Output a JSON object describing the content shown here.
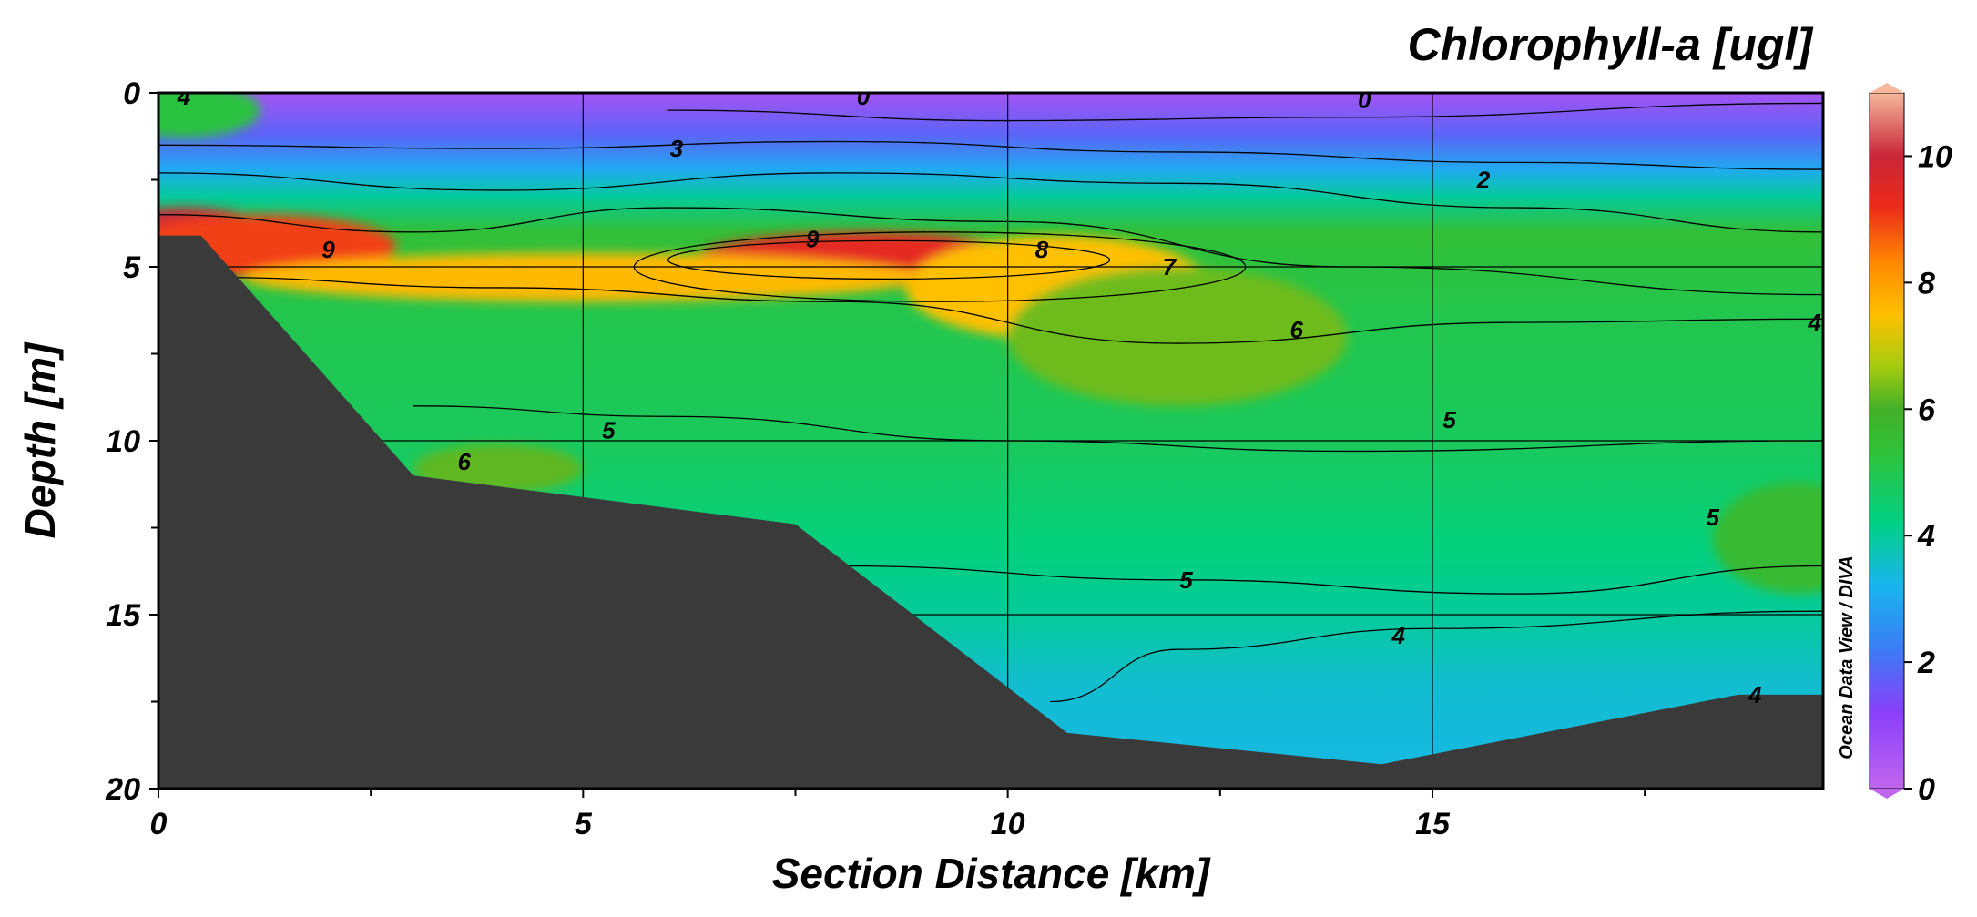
{
  "chart_data": {
    "type": "heatmap",
    "title": "Chlorophyll-a [ugl]",
    "xlabel": "Section Distance [km]",
    "ylabel": "Depth [m]",
    "xlim": [
      0,
      19.6
    ],
    "ylim": [
      20,
      0
    ],
    "y_inverted": true,
    "xticks": [
      0,
      5,
      10,
      15
    ],
    "yticks": [
      0,
      5,
      10,
      15,
      20
    ],
    "grid": true,
    "credit": "Ocean Data View / DIVA",
    "colorbar": {
      "min": 0,
      "max": 11,
      "ticks": [
        0,
        2,
        4,
        6,
        8,
        10
      ],
      "stops": [
        {
          "value": 0,
          "color": "#c066ee"
        },
        {
          "value": 1.2,
          "color": "#8a3ffa"
        },
        {
          "value": 2.2,
          "color": "#3b7cf5"
        },
        {
          "value": 3.2,
          "color": "#19b5f0"
        },
        {
          "value": 4.2,
          "color": "#00d184"
        },
        {
          "value": 5.3,
          "color": "#2fc23a"
        },
        {
          "value": 6.0,
          "color": "#43b028"
        },
        {
          "value": 6.7,
          "color": "#a8cc0e"
        },
        {
          "value": 7.5,
          "color": "#ffc000"
        },
        {
          "value": 8.3,
          "color": "#ff8a00"
        },
        {
          "value": 9.2,
          "color": "#ee2a1a"
        },
        {
          "value": 10.0,
          "color": "#c92538"
        },
        {
          "value": 11.0,
          "color": "#f5b89c"
        }
      ]
    },
    "bottom_color": "#3a3a3a",
    "bottom_profile": [
      [
        0,
        4.1
      ],
      [
        0.5,
        4.1
      ],
      [
        3.0,
        11.0
      ],
      [
        7.5,
        12.4
      ],
      [
        10.7,
        18.4
      ],
      [
        14.4,
        19.3
      ],
      [
        18.6,
        17.3
      ],
      [
        19.6,
        17.3
      ]
    ],
    "hotspots": [
      {
        "x": 0.3,
        "y": 4.2,
        "value": 10.0,
        "sx": 1.1,
        "sy": 0.9
      },
      {
        "x": 1.2,
        "y": 4.4,
        "value": 9.0,
        "sx": 1.6,
        "sy": 0.9
      },
      {
        "x": 8.3,
        "y": 4.8,
        "value": 9.4,
        "sx": 2.0,
        "sy": 0.8
      },
      {
        "x": 10.6,
        "y": 5.6,
        "value": 7.5,
        "sx": 1.8,
        "sy": 1.5
      },
      {
        "x": 12.0,
        "y": 7.0,
        "value": 6.3,
        "sx": 2.0,
        "sy": 2.0
      },
      {
        "x": 5.0,
        "y": 5.3,
        "value": 7.6,
        "sx": 4.0,
        "sy": 0.7
      },
      {
        "x": 4.0,
        "y": 10.8,
        "value": 6.2,
        "sx": 1.0,
        "sy": 0.7
      },
      {
        "x": 0.3,
        "y": 0.5,
        "value": 5.2,
        "sx": 0.9,
        "sy": 0.8
      },
      {
        "x": 19.3,
        "y": 12.8,
        "value": 5.6,
        "sx": 1.0,
        "sy": 1.6
      }
    ],
    "contour_labels": [
      {
        "x": 0.3,
        "y": 0.1,
        "value": 4
      },
      {
        "x": 8.3,
        "y": 0.1,
        "value": 0
      },
      {
        "x": 14.2,
        "y": 0.2,
        "value": 0
      },
      {
        "x": 6.1,
        "y": 1.6,
        "value": 3
      },
      {
        "x": 15.6,
        "y": 2.5,
        "value": 2
      },
      {
        "x": 2.0,
        "y": 4.5,
        "value": 9
      },
      {
        "x": 7.7,
        "y": 4.2,
        "value": 9
      },
      {
        "x": 10.4,
        "y": 4.5,
        "value": 8
      },
      {
        "x": 11.9,
        "y": 5.0,
        "value": 7
      },
      {
        "x": 13.4,
        "y": 6.8,
        "value": 6
      },
      {
        "x": 19.5,
        "y": 6.6,
        "value": 4
      },
      {
        "x": 5.3,
        "y": 9.7,
        "value": 5
      },
      {
        "x": 3.6,
        "y": 10.6,
        "value": 6
      },
      {
        "x": 15.2,
        "y": 9.4,
        "value": 5
      },
      {
        "x": 18.3,
        "y": 12.2,
        "value": 5
      },
      {
        "x": 12.1,
        "y": 14.0,
        "value": 5
      },
      {
        "x": 14.6,
        "y": 15.6,
        "value": 4
      },
      {
        "x": 18.8,
        "y": 17.3,
        "value": 4
      }
    ]
  }
}
